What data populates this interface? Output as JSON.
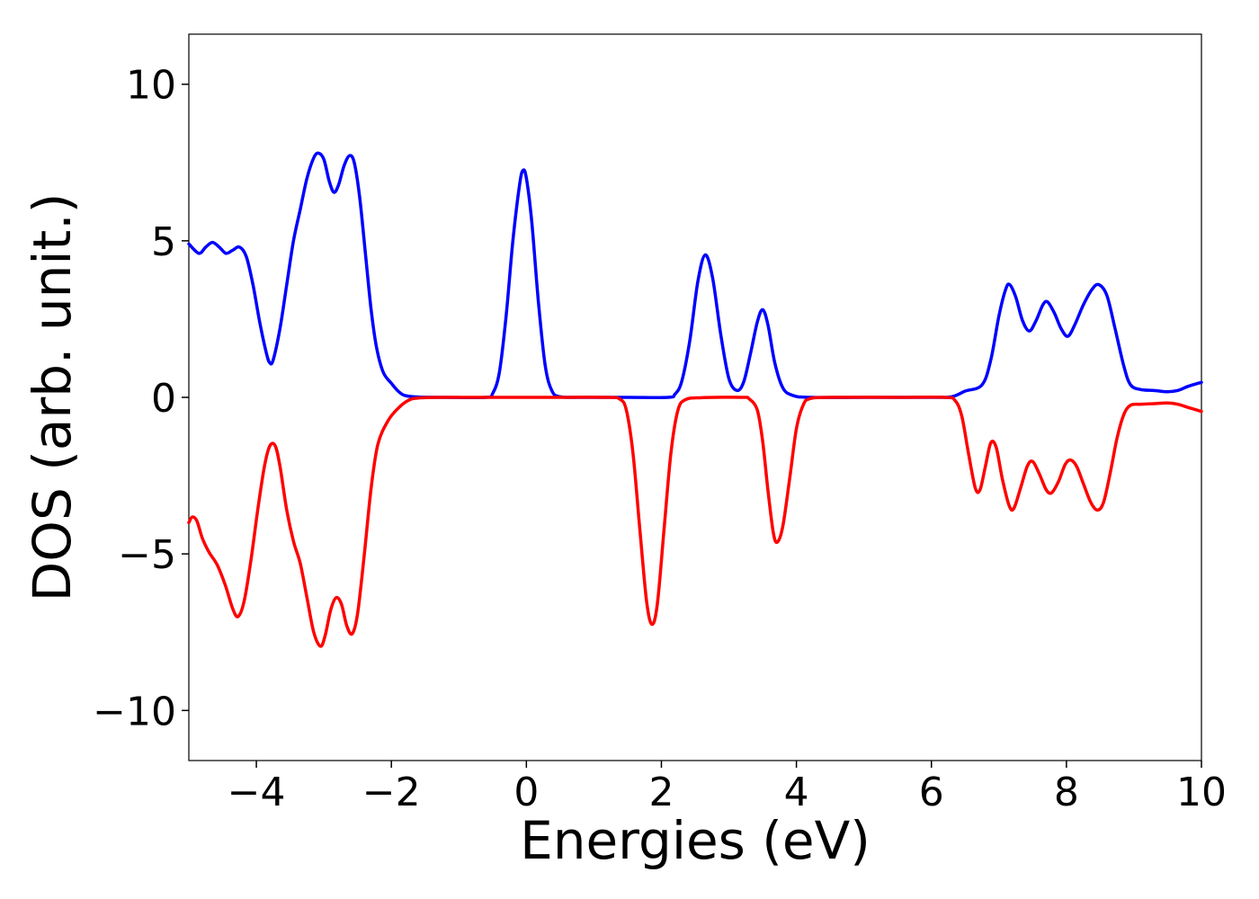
{
  "chart_data": {
    "type": "line",
    "title": "",
    "xlabel": "Energies (eV)",
    "ylabel": "DOS (arb. unit.)",
    "xlim": [
      -5,
      10
    ],
    "ylim": [
      -11.6,
      11.6
    ],
    "xticks": [
      -4,
      -2,
      0,
      2,
      4,
      6,
      8,
      10
    ],
    "yticks": [
      -10,
      -5,
      0,
      5,
      10
    ],
    "xtick_labels": [
      "−4",
      "−2",
      "0",
      "2",
      "4",
      "6",
      "8",
      "10"
    ],
    "ytick_labels": [
      "−10",
      "−5",
      "0",
      "5",
      "10"
    ],
    "grid": false,
    "legend": "none",
    "series": [
      {
        "color": "#0000ff",
        "points": [
          [
            -5.0,
            4.9
          ],
          [
            -4.85,
            4.6
          ],
          [
            -4.75,
            4.8
          ],
          [
            -4.65,
            4.95
          ],
          [
            -4.55,
            4.8
          ],
          [
            -4.45,
            4.6
          ],
          [
            -4.35,
            4.7
          ],
          [
            -4.25,
            4.8
          ],
          [
            -4.15,
            4.5
          ],
          [
            -4.05,
            3.6
          ],
          [
            -3.95,
            2.4
          ],
          [
            -3.85,
            1.4
          ],
          [
            -3.8,
            1.1
          ],
          [
            -3.75,
            1.2
          ],
          [
            -3.65,
            2.2
          ],
          [
            -3.55,
            3.6
          ],
          [
            -3.45,
            5.0
          ],
          [
            -3.35,
            6.0
          ],
          [
            -3.25,
            7.0
          ],
          [
            -3.15,
            7.65
          ],
          [
            -3.08,
            7.8
          ],
          [
            -3.0,
            7.6
          ],
          [
            -2.92,
            6.9
          ],
          [
            -2.85,
            6.55
          ],
          [
            -2.78,
            6.8
          ],
          [
            -2.7,
            7.4
          ],
          [
            -2.62,
            7.72
          ],
          [
            -2.55,
            7.5
          ],
          [
            -2.47,
            6.4
          ],
          [
            -2.38,
            4.5
          ],
          [
            -2.3,
            2.8
          ],
          [
            -2.22,
            1.6
          ],
          [
            -2.12,
            0.8
          ],
          [
            -2.0,
            0.45
          ],
          [
            -1.9,
            0.2
          ],
          [
            -1.8,
            0.06
          ],
          [
            -1.6,
            0.01
          ],
          [
            -1.2,
            0.0
          ],
          [
            -0.6,
            0.0
          ],
          [
            -0.5,
            0.12
          ],
          [
            -0.4,
            0.8
          ],
          [
            -0.3,
            2.6
          ],
          [
            -0.2,
            5.0
          ],
          [
            -0.1,
            6.8
          ],
          [
            -0.05,
            7.25
          ],
          [
            0.0,
            7.0
          ],
          [
            0.08,
            5.6
          ],
          [
            0.18,
            3.0
          ],
          [
            0.28,
            1.0
          ],
          [
            0.38,
            0.2
          ],
          [
            0.5,
            0.02
          ],
          [
            0.8,
            0.0
          ],
          [
            1.5,
            0.0
          ],
          [
            2.1,
            0.0
          ],
          [
            2.2,
            0.1
          ],
          [
            2.3,
            0.5
          ],
          [
            2.42,
            1.8
          ],
          [
            2.54,
            3.7
          ],
          [
            2.65,
            4.55
          ],
          [
            2.76,
            3.8
          ],
          [
            2.88,
            2.0
          ],
          [
            3.0,
            0.6
          ],
          [
            3.12,
            0.22
          ],
          [
            3.22,
            0.5
          ],
          [
            3.32,
            1.4
          ],
          [
            3.42,
            2.4
          ],
          [
            3.5,
            2.8
          ],
          [
            3.58,
            2.3
          ],
          [
            3.68,
            1.1
          ],
          [
            3.8,
            0.3
          ],
          [
            3.95,
            0.06
          ],
          [
            4.2,
            0.0
          ],
          [
            5.0,
            0.0
          ],
          [
            6.0,
            0.0
          ],
          [
            6.3,
            0.02
          ],
          [
            6.5,
            0.2
          ],
          [
            6.75,
            0.4
          ],
          [
            6.88,
            1.2
          ],
          [
            7.0,
            2.6
          ],
          [
            7.1,
            3.45
          ],
          [
            7.16,
            3.6
          ],
          [
            7.25,
            3.2
          ],
          [
            7.35,
            2.45
          ],
          [
            7.45,
            2.12
          ],
          [
            7.55,
            2.45
          ],
          [
            7.65,
            2.95
          ],
          [
            7.72,
            3.05
          ],
          [
            7.82,
            2.7
          ],
          [
            7.92,
            2.2
          ],
          [
            8.02,
            1.95
          ],
          [
            8.12,
            2.3
          ],
          [
            8.25,
            2.95
          ],
          [
            8.38,
            3.45
          ],
          [
            8.48,
            3.6
          ],
          [
            8.6,
            3.25
          ],
          [
            8.72,
            2.2
          ],
          [
            8.85,
            1.0
          ],
          [
            8.95,
            0.4
          ],
          [
            9.1,
            0.25
          ],
          [
            9.3,
            0.22
          ],
          [
            9.5,
            0.18
          ],
          [
            9.65,
            0.22
          ],
          [
            9.8,
            0.35
          ],
          [
            10.0,
            0.48
          ]
        ]
      },
      {
        "color": "#ff0000",
        "points": [
          [
            -5.0,
            -4.0
          ],
          [
            -4.95,
            -3.82
          ],
          [
            -4.88,
            -3.95
          ],
          [
            -4.8,
            -4.5
          ],
          [
            -4.7,
            -4.95
          ],
          [
            -4.58,
            -5.35
          ],
          [
            -4.46,
            -6.0
          ],
          [
            -4.35,
            -6.75
          ],
          [
            -4.27,
            -7.0
          ],
          [
            -4.18,
            -6.5
          ],
          [
            -4.08,
            -5.2
          ],
          [
            -3.98,
            -3.6
          ],
          [
            -3.88,
            -2.2
          ],
          [
            -3.8,
            -1.55
          ],
          [
            -3.72,
            -1.55
          ],
          [
            -3.65,
            -2.2
          ],
          [
            -3.55,
            -3.6
          ],
          [
            -3.45,
            -4.6
          ],
          [
            -3.35,
            -5.3
          ],
          [
            -3.25,
            -6.4
          ],
          [
            -3.15,
            -7.5
          ],
          [
            -3.05,
            -7.95
          ],
          [
            -2.98,
            -7.6
          ],
          [
            -2.9,
            -6.8
          ],
          [
            -2.82,
            -6.4
          ],
          [
            -2.74,
            -6.6
          ],
          [
            -2.66,
            -7.3
          ],
          [
            -2.58,
            -7.55
          ],
          [
            -2.5,
            -6.9
          ],
          [
            -2.4,
            -5.0
          ],
          [
            -2.3,
            -2.9
          ],
          [
            -2.2,
            -1.5
          ],
          [
            -2.05,
            -0.75
          ],
          [
            -1.9,
            -0.35
          ],
          [
            -1.75,
            -0.1
          ],
          [
            -1.6,
            -0.02
          ],
          [
            -1.2,
            0.0
          ],
          [
            -0.5,
            0.0
          ],
          [
            0.5,
            0.0
          ],
          [
            1.2,
            0.0
          ],
          [
            1.38,
            -0.05
          ],
          [
            1.48,
            -0.4
          ],
          [
            1.58,
            -1.8
          ],
          [
            1.68,
            -4.2
          ],
          [
            1.78,
            -6.5
          ],
          [
            1.86,
            -7.25
          ],
          [
            1.94,
            -6.6
          ],
          [
            2.04,
            -4.2
          ],
          [
            2.14,
            -1.8
          ],
          [
            2.24,
            -0.45
          ],
          [
            2.35,
            -0.08
          ],
          [
            2.6,
            -0.01
          ],
          [
            3.2,
            0.0
          ],
          [
            3.3,
            -0.05
          ],
          [
            3.42,
            -0.4
          ],
          [
            3.5,
            -1.4
          ],
          [
            3.58,
            -3.0
          ],
          [
            3.66,
            -4.35
          ],
          [
            3.72,
            -4.62
          ],
          [
            3.8,
            -4.1
          ],
          [
            3.9,
            -2.6
          ],
          [
            4.0,
            -1.0
          ],
          [
            4.1,
            -0.25
          ],
          [
            4.2,
            -0.04
          ],
          [
            4.5,
            0.0
          ],
          [
            5.5,
            0.0
          ],
          [
            6.2,
            0.0
          ],
          [
            6.35,
            -0.1
          ],
          [
            6.45,
            -0.6
          ],
          [
            6.55,
            -1.8
          ],
          [
            6.65,
            -2.9
          ],
          [
            6.72,
            -2.95
          ],
          [
            6.8,
            -2.2
          ],
          [
            6.88,
            -1.45
          ],
          [
            6.96,
            -1.6
          ],
          [
            7.05,
            -2.6
          ],
          [
            7.15,
            -3.45
          ],
          [
            7.22,
            -3.55
          ],
          [
            7.32,
            -2.9
          ],
          [
            7.42,
            -2.2
          ],
          [
            7.5,
            -2.05
          ],
          [
            7.6,
            -2.45
          ],
          [
            7.7,
            -2.95
          ],
          [
            7.78,
            -3.05
          ],
          [
            7.88,
            -2.7
          ],
          [
            7.98,
            -2.15
          ],
          [
            8.06,
            -2.0
          ],
          [
            8.15,
            -2.2
          ],
          [
            8.25,
            -2.75
          ],
          [
            8.36,
            -3.35
          ],
          [
            8.46,
            -3.6
          ],
          [
            8.55,
            -3.35
          ],
          [
            8.65,
            -2.4
          ],
          [
            8.75,
            -1.3
          ],
          [
            8.85,
            -0.55
          ],
          [
            8.95,
            -0.25
          ],
          [
            9.1,
            -0.22
          ],
          [
            9.3,
            -0.2
          ],
          [
            9.5,
            -0.18
          ],
          [
            9.65,
            -0.22
          ],
          [
            9.8,
            -0.32
          ],
          [
            10.0,
            -0.45
          ]
        ]
      }
    ]
  }
}
